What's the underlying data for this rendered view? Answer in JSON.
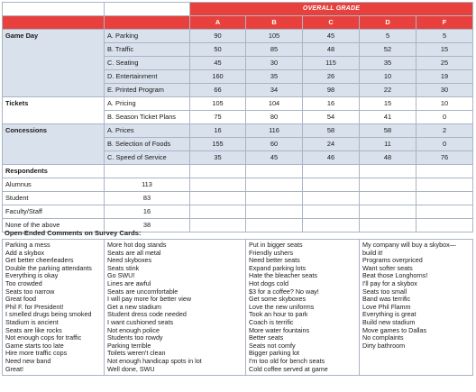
{
  "header": {
    "overall_grade": "OVERALL GRADE",
    "grades": [
      "A",
      "B",
      "C",
      "D",
      "F"
    ]
  },
  "sections": [
    {
      "category": "Game Day",
      "rows": [
        {
          "item": "A. Parking",
          "values": [
            "90",
            "105",
            "45",
            "5",
            "5"
          ]
        },
        {
          "item": "B. Traffic",
          "values": [
            "50",
            "85",
            "48",
            "52",
            "15"
          ]
        },
        {
          "item": "C. Seating",
          "values": [
            "45",
            "30",
            "115",
            "35",
            "25"
          ]
        },
        {
          "item": "D. Entertainment",
          "values": [
            "160",
            "35",
            "26",
            "10",
            "19"
          ]
        },
        {
          "item": "E. Printed Program",
          "values": [
            "66",
            "34",
            "98",
            "22",
            "30"
          ]
        }
      ]
    },
    {
      "category": "Tickets",
      "rows": [
        {
          "item": "A. Pricing",
          "values": [
            "105",
            "104",
            "16",
            "15",
            "10"
          ]
        },
        {
          "item": "B. Season Ticket Plans",
          "values": [
            "75",
            "80",
            "54",
            "41",
            "0"
          ]
        }
      ]
    },
    {
      "category": "Concessions",
      "rows": [
        {
          "item": "A. Prices",
          "values": [
            "16",
            "116",
            "58",
            "58",
            "2"
          ]
        },
        {
          "item": "B. Selection of Foods",
          "values": [
            "155",
            "60",
            "24",
            "11",
            "0"
          ]
        },
        {
          "item": "C. Speed of Service",
          "values": [
            "35",
            "45",
            "46",
            "48",
            "76"
          ]
        }
      ]
    }
  ],
  "respondents": {
    "title": "Respondents",
    "rows": [
      {
        "label": "Alumnus",
        "value": "113"
      },
      {
        "label": "Student",
        "value": "83"
      },
      {
        "label": "Faculty/Staff",
        "value": "16"
      },
      {
        "label": "None of the above",
        "value": "38"
      }
    ]
  },
  "comments": {
    "title": "Open-Ended Comments on Survey Cards:",
    "columns": [
      [
        "Parking a mess",
        "Add a skybox",
        "Get better cheerleaders",
        "Double the parking attendants",
        "Everything is okay",
        "Too crowded",
        "Seats too narrow",
        "Great food",
        "Phil F. for President!",
        "I smelled drugs being smoked",
        "Stadium is ancient",
        "Seats are like rocks",
        "Not enough cops for traffic",
        "Game starts too late",
        "Hire more traffic cops",
        "Need new band",
        "Great!"
      ],
      [
        "More hot dog stands",
        "Seats are all metal",
        "Need skyboxes",
        "Seats stink",
        "Go SWU!",
        "Lines are awful",
        "Seats are uncomfortable",
        "I will pay more for better view",
        "Get a new stadium",
        "Student dress code needed",
        "I want cushioned seats",
        "Not enough police",
        "Students too rowdy",
        "Parking terrible",
        "Toilets weren't clean",
        "Not enough handicap spots in lot",
        "Well done, SWU"
      ],
      [
        "Put in bigger seats",
        "Friendly ushers",
        "Need better seats",
        "Expand parking lots",
        "Hate the bleacher seats",
        "Hot dogs cold",
        "$3 for a coffee? No way!",
        "Get some skyboxes",
        "Love the new uniforms",
        "Took an hour to park",
        "Coach is terrific",
        "More water fountains",
        "Better seats",
        "Seats not comfy",
        "Bigger parking lot",
        "I'm too old for bench seats",
        "Cold coffee served at game"
      ],
      [
        "My company will buy a skybox—",
        "build it!",
        "Programs overpriced",
        "Want softer seats",
        "Beat those Longhorns!",
        "I'll pay for a skybox",
        "Seats too small",
        "Band was terrific",
        "Love Phil Flamm",
        "Everything is great",
        "Build new stadium",
        "Move games to Dallas",
        "No complaints",
        "Dirty bathroom"
      ]
    ]
  }
}
